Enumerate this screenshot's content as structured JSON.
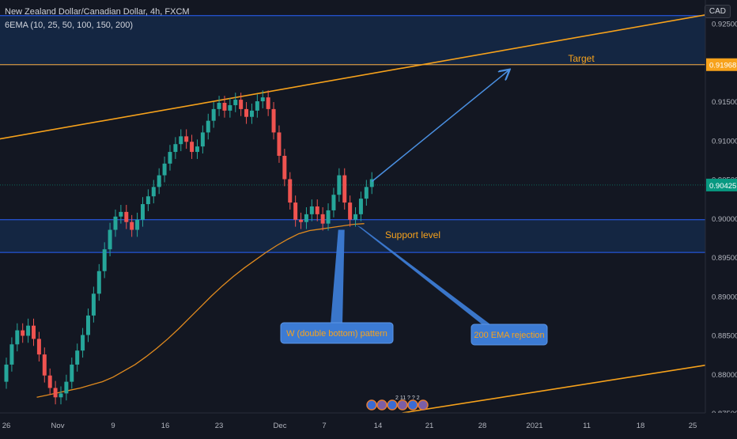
{
  "header": {
    "title": "New Zealand Dollar/Canadian Dollar, 4h, FXCM",
    "indicator": "6EMA (10, 25, 50, 100, 150, 200)",
    "currency": "CAD"
  },
  "colors": {
    "background": "#131722",
    "zone_fill": "#163059",
    "zone_line": "#2962ff",
    "trendline": "#f7a21b",
    "ema200": "#e08a1e",
    "candle_up": "#26a69a",
    "candle_down": "#ef5350",
    "arrow_blue": "#4a90e2",
    "callout": "#3c7bd4",
    "price_tag": "#089981",
    "target_tag": "#f7a21b"
  },
  "annotations": {
    "target_label": "Target",
    "support_label": "Support level",
    "pattern_label": "W (double bottom) pattern",
    "ema_label": "200 EMA rejection"
  },
  "events_badge": "2 11 ? ? 2",
  "chart_data": {
    "type": "candlestick",
    "symbol": "NZDCAD",
    "timeframe": "4h",
    "x_ticks": [
      "26",
      "Nov",
      "9",
      "16",
      "23",
      "Dec",
      "7",
      "14",
      "21",
      "28",
      "2021",
      "11",
      "18",
      "25"
    ],
    "y_ticks": [
      "0.92500",
      "0.91500",
      "0.91000",
      "0.90500",
      "0.90000",
      "0.89500",
      "0.89000",
      "0.88500",
      "0.88000",
      "0.87500"
    ],
    "ylim": [
      0.875,
      0.928
    ],
    "current_price": "0.90425",
    "target_price": "0.91968",
    "zones": [
      {
        "name": "resistance-zone",
        "top": 0.926,
        "bottom": 0.9197
      },
      {
        "name": "support-zone",
        "top": 0.8998,
        "bottom": 0.8956
      }
    ],
    "trendlines": [
      {
        "name": "upper-channel",
        "from": [
          "Oct 23",
          0.9098
        ],
        "to": [
          "Jan 27",
          0.9263
        ]
      },
      {
        "name": "lower-channel",
        "from": [
          "Dec 17",
          0.875
        ],
        "to": [
          "Jan 27",
          0.8813
        ]
      }
    ],
    "closes": [
      0.8812,
      0.8838,
      0.8856,
      0.8849,
      0.8862,
      0.8845,
      0.8825,
      0.8798,
      0.8782,
      0.877,
      0.8775,
      0.879,
      0.8812,
      0.883,
      0.885,
      0.8875,
      0.8903,
      0.8932,
      0.896,
      0.8985,
      0.9002,
      0.9008,
      0.8995,
      0.8985,
      0.8998,
      0.9018,
      0.9028,
      0.904,
      0.9055,
      0.907,
      0.9085,
      0.9095,
      0.9105,
      0.9098,
      0.9085,
      0.9092,
      0.911,
      0.9125,
      0.914,
      0.9148,
      0.9138,
      0.9145,
      0.9152,
      0.914,
      0.913,
      0.9138,
      0.915,
      0.9155,
      0.914,
      0.911,
      0.908,
      0.905,
      0.902,
      0.8998,
      0.8995,
      0.9005,
      0.9015,
      0.9005,
      0.8993,
      0.901,
      0.903,
      0.9055,
      0.902,
      0.8998,
      0.9005,
      0.9025,
      0.904,
      0.905
    ],
    "ema200": [
      0.877,
      0.8773,
      0.8776,
      0.8779,
      0.8782,
      0.8786,
      0.879,
      0.8796,
      0.8804,
      0.8812,
      0.8822,
      0.8833,
      0.8845,
      0.8858,
      0.8872,
      0.8886,
      0.89,
      0.8913,
      0.8925,
      0.8936,
      0.8946,
      0.8956,
      0.8965,
      0.8973,
      0.898,
      0.8984,
      0.8986,
      0.8988,
      0.899,
      0.8992,
      0.8993
    ]
  }
}
